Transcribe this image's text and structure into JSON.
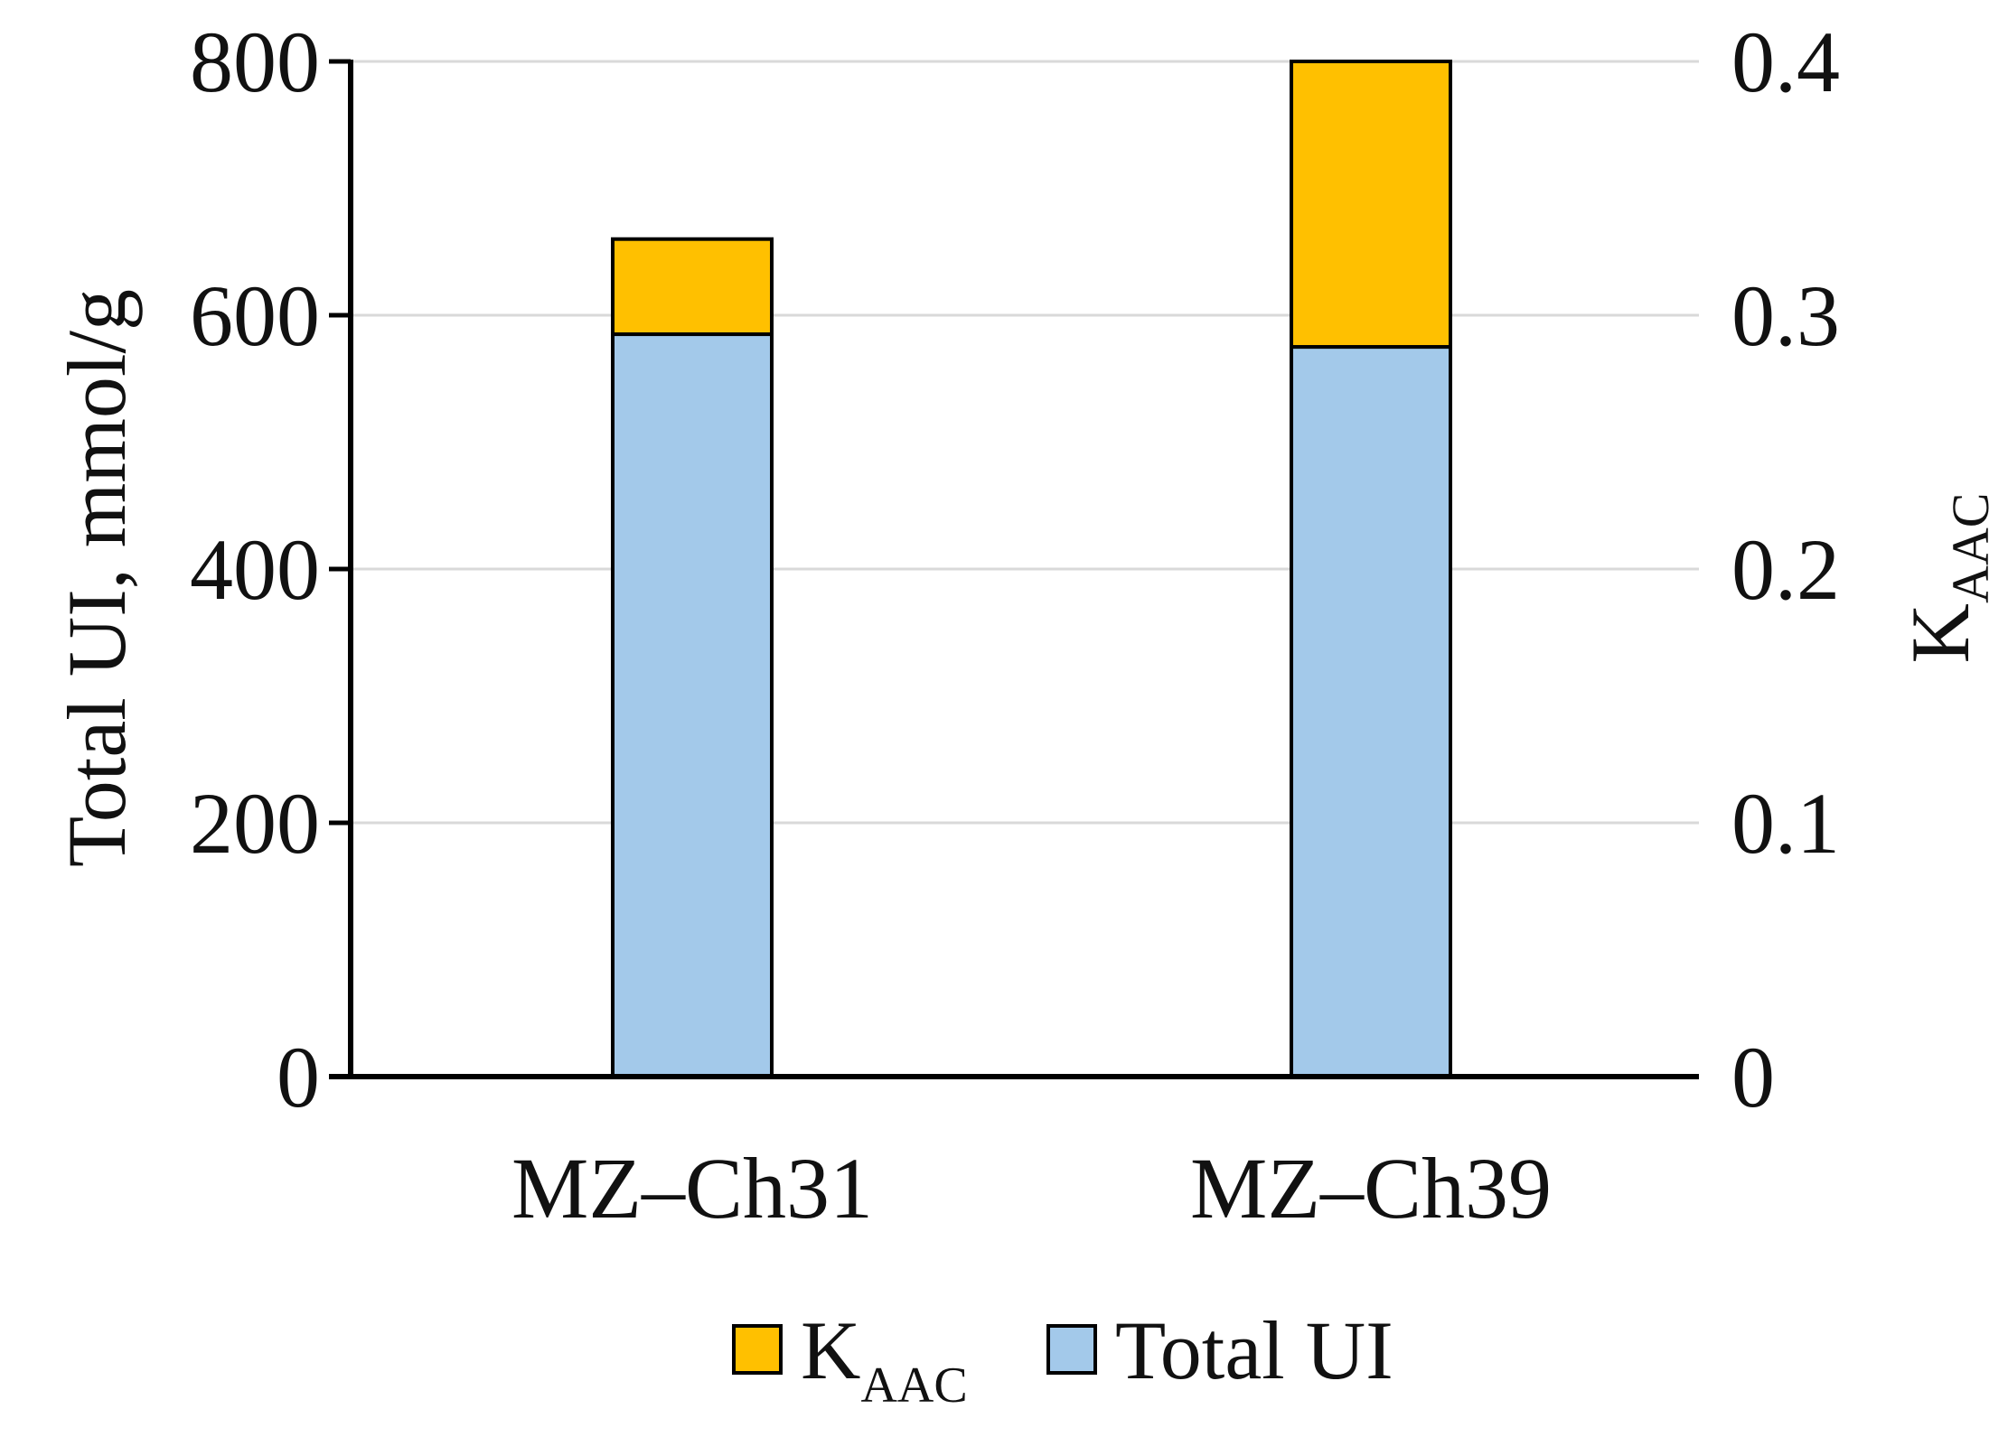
{
  "chart_data": {
    "type": "bar",
    "stacked": true,
    "categories": [
      "MZ–Ch31",
      "MZ–Ch39"
    ],
    "series": [
      {
        "name": "Total UI",
        "axis": "left",
        "values": [
          585,
          575
        ],
        "color": "#a3c9ea"
      },
      {
        "name": "K",
        "name_sub": "AAC",
        "axis": "right",
        "values": [
          0.33,
          0.4
        ],
        "color": "#ffc000"
      }
    ],
    "ylabel": "Total UI, mmol/g",
    "y2label": "K",
    "y2label_sub": "AAC",
    "ylim": [
      0,
      800
    ],
    "y2lim": [
      0,
      0.4
    ],
    "yticks": [
      "0",
      "200",
      "400",
      "600",
      "800"
    ],
    "y2ticks": [
      "0",
      "0.1",
      "0.2",
      "0.3",
      "0.4"
    ],
    "grid": true,
    "legend_position": "bottom",
    "legend_order": [
      1,
      0
    ]
  }
}
